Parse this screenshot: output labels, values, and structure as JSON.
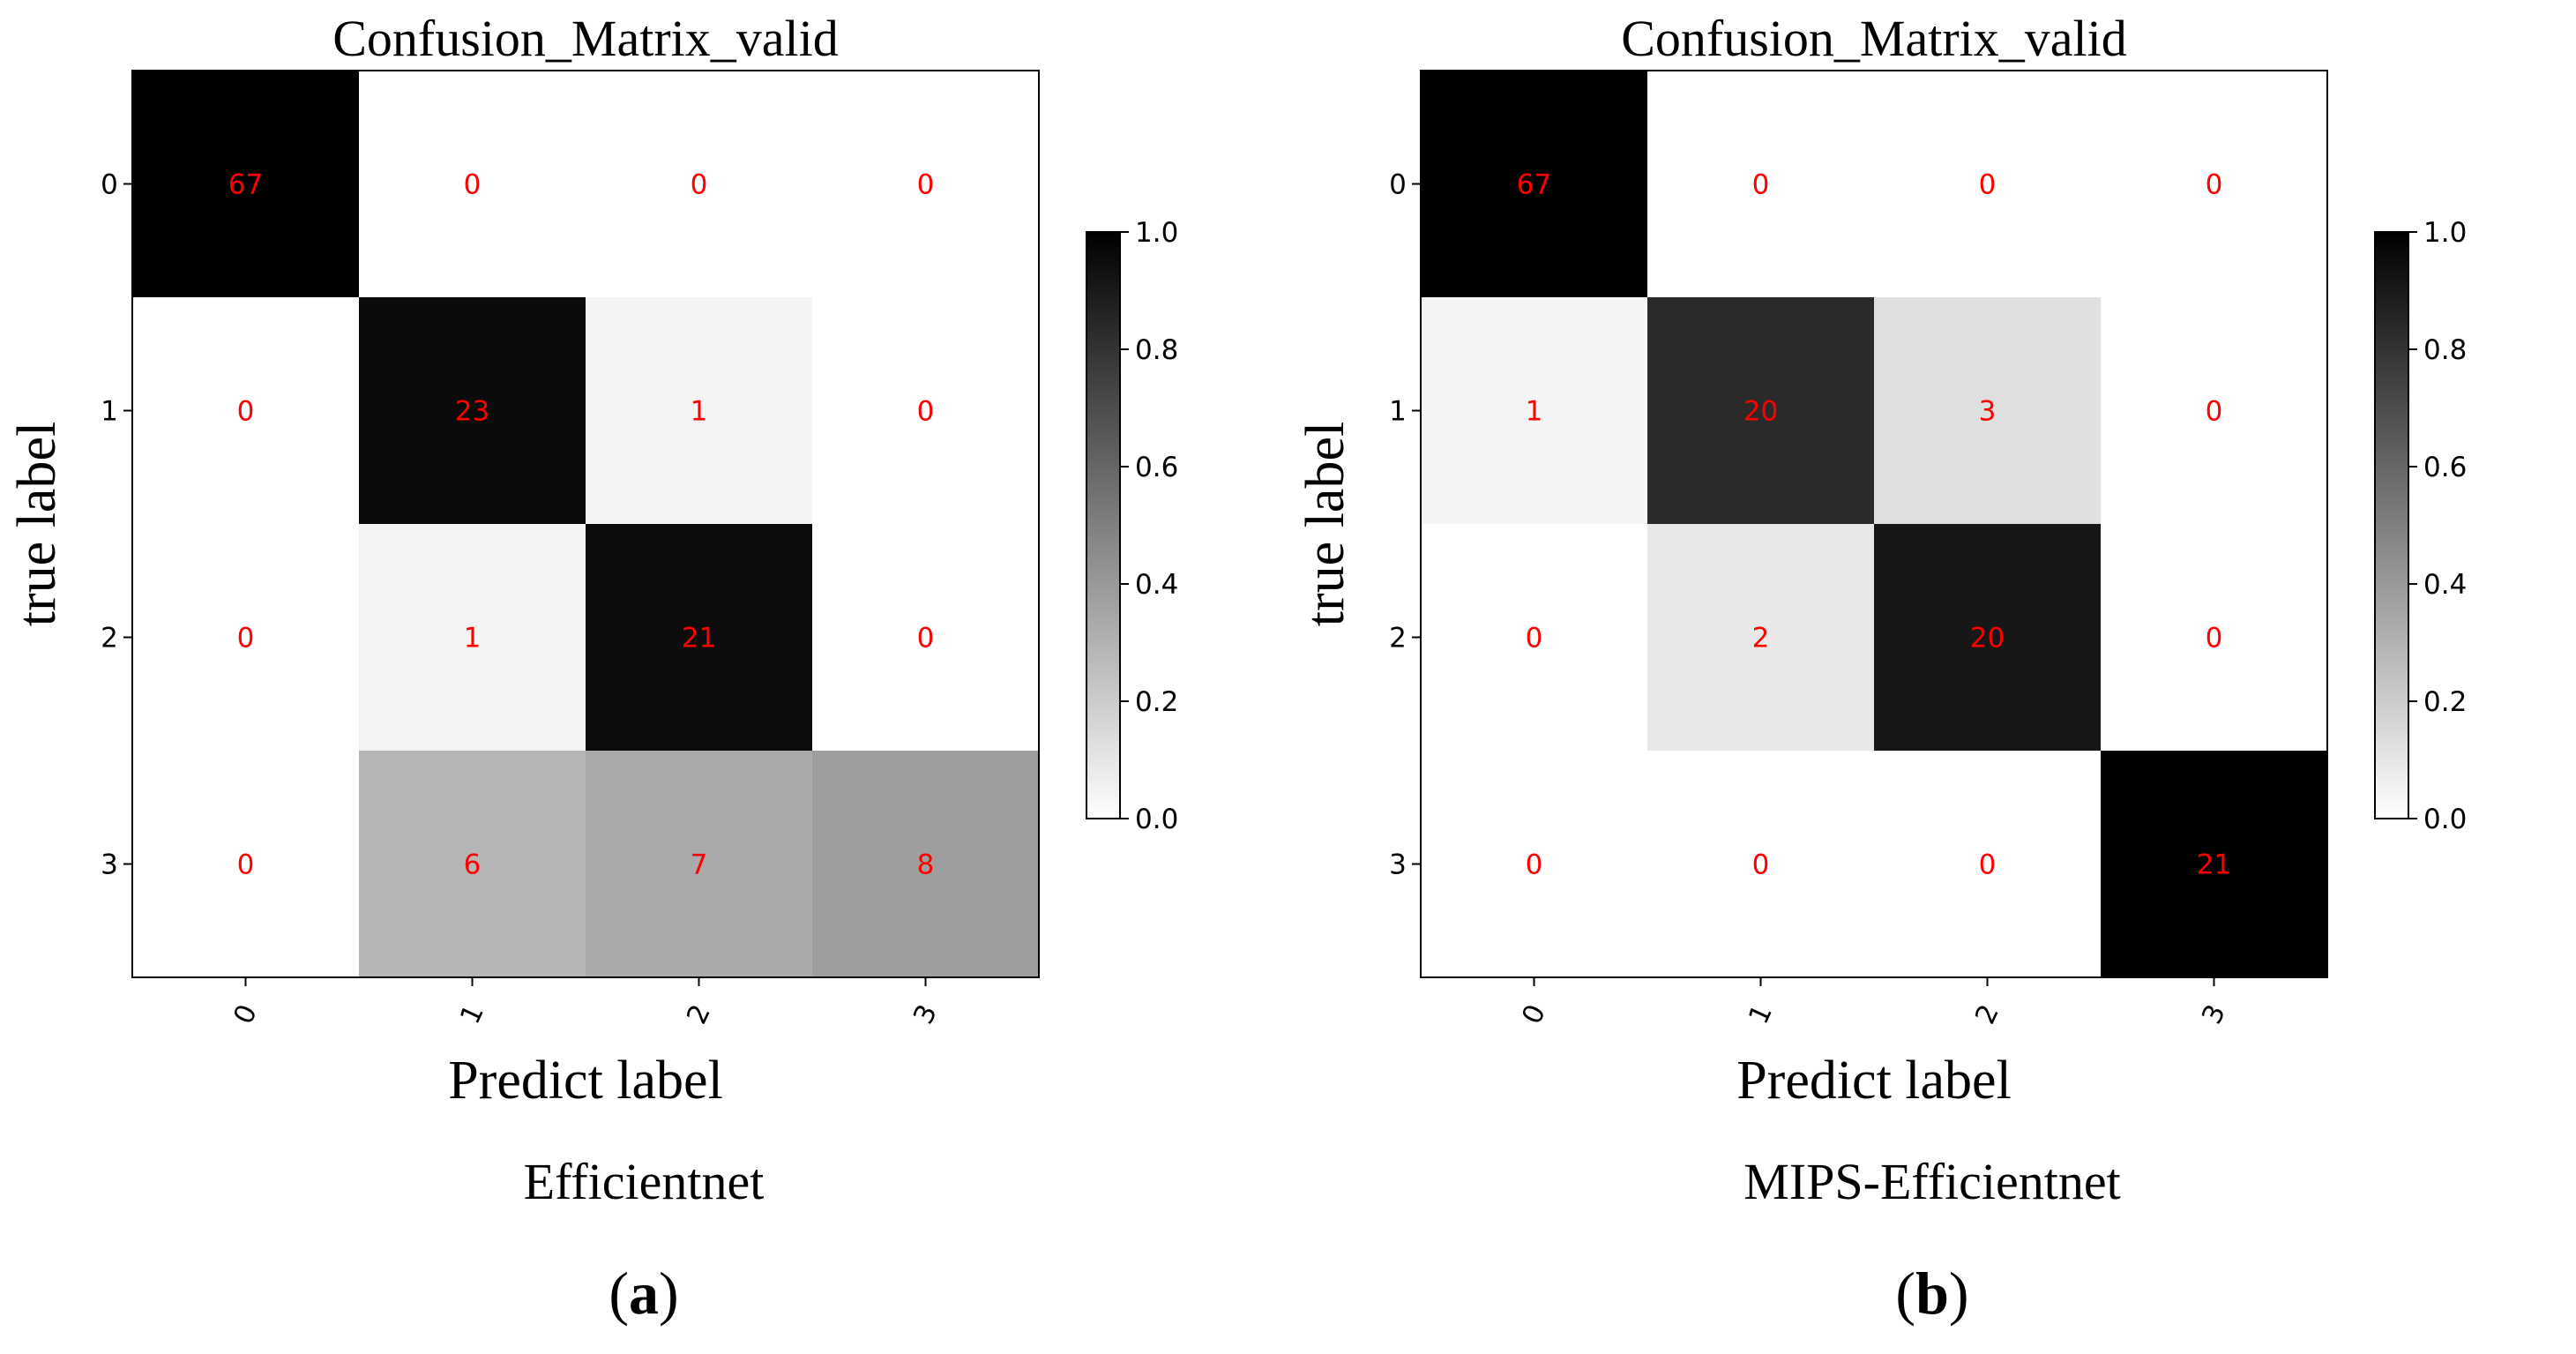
{
  "figure": {
    "panels": [
      {
        "id": "a",
        "model": "Efficientnet",
        "letter": "a"
      },
      {
        "id": "b",
        "model": "MIPS-Efficientnet",
        "letter": "b"
      }
    ]
  },
  "chart_data": [
    {
      "type": "heatmap",
      "title": "Confusion_Matrix_valid",
      "xlabel": "Predict label",
      "ylabel": "true label",
      "x_ticks": [
        "0",
        "1",
        "2",
        "3"
      ],
      "y_ticks": [
        "0",
        "1",
        "2",
        "3"
      ],
      "colormap": "Greys",
      "colorbar_ticks": [
        "0.0",
        "0.2",
        "0.4",
        "0.6",
        "0.8",
        "1.0"
      ],
      "colorbar_range": [
        0,
        1
      ],
      "annotation_color": "#ff0000",
      "matrix": [
        [
          67,
          0,
          0,
          0
        ],
        [
          0,
          23,
          1,
          0
        ],
        [
          0,
          1,
          21,
          0
        ],
        [
          0,
          6,
          7,
          8
        ]
      ],
      "caption": "Efficientnet",
      "panel_letter": "a"
    },
    {
      "type": "heatmap",
      "title": "Confusion_Matrix_valid",
      "xlabel": "Predict label",
      "ylabel": "true label",
      "x_ticks": [
        "0",
        "1",
        "2",
        "3"
      ],
      "y_ticks": [
        "0",
        "1",
        "2",
        "3"
      ],
      "colormap": "Greys",
      "colorbar_ticks": [
        "0.0",
        "0.2",
        "0.4",
        "0.6",
        "0.8",
        "1.0"
      ],
      "colorbar_range": [
        0,
        1
      ],
      "annotation_color": "#ff0000",
      "matrix": [
        [
          67,
          0,
          0,
          0
        ],
        [
          1,
          20,
          3,
          0
        ],
        [
          0,
          2,
          20,
          0
        ],
        [
          0,
          0,
          0,
          21
        ]
      ],
      "caption": "MIPS-Efficientnet",
      "panel_letter": "b"
    }
  ]
}
